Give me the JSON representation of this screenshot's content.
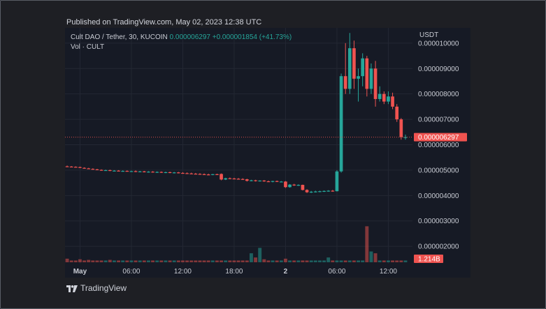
{
  "header": {
    "published_text": "Published on TradingView.com, May 02, 2023 12:38 UTC"
  },
  "legend": {
    "symbol": "Cult DAO / Tether, 30, KUCOIN",
    "last_price": "0.000006297",
    "change": "+0.000001854 (+41.73%)",
    "volume_label": "Vol · CULT"
  },
  "axis": {
    "currency": "USDT"
  },
  "badges": {
    "price": "0.000006297",
    "volume": "1.214B"
  },
  "footer": {
    "brand": "TradingView"
  },
  "colors": {
    "up": "#26a69a",
    "down": "#ef5350",
    "background": "#161a25",
    "grid": "#232733"
  },
  "chart_data": {
    "type": "candlestick",
    "title": "Cult DAO / Tether, 30, KUCOIN",
    "interval": "30",
    "currency": "USDT",
    "x_ticks": [
      "May",
      "06:00",
      "12:00",
      "18:00",
      "2",
      "06:00",
      "12:00"
    ],
    "x_tick_bar_index": [
      3,
      15,
      27,
      39,
      51,
      63,
      75
    ],
    "y_ticks": [
      2e-06,
      3e-06,
      4e-06,
      5e-06,
      6e-06,
      7e-06,
      8e-06,
      9e-06,
      1e-05
    ],
    "y_tick_labels": [
      "0.000002000",
      "0.000003000",
      "0.000004000",
      "0.000005000",
      "0.000006000",
      "0.000007000",
      "0.000008000",
      "0.000009000",
      "0.000010000"
    ],
    "ylim": [
      1.4e-06,
      1.06e-05
    ],
    "last_price": 6.297e-06,
    "last_volume": "1.214B",
    "grid": true,
    "candles": [
      [
        5.15e-06,
        5.18e-06,
        5.13e-06,
        5.14e-06
      ],
      [
        5.14e-06,
        5.16e-06,
        5.12e-06,
        5.13e-06
      ],
      [
        5.13e-06,
        5.15e-06,
        5.11e-06,
        5.12e-06
      ],
      [
        5.12e-06,
        5.14e-06,
        5.08e-06,
        5.09e-06
      ],
      [
        5.09e-06,
        5.11e-06,
        5.06e-06,
        5.07e-06
      ],
      [
        5.07e-06,
        5.09e-06,
        5.04e-06,
        5.05e-06
      ],
      [
        5.05e-06,
        5.07e-06,
        5.02e-06,
        5.03e-06
      ],
      [
        5.03e-06,
        5.05e-06,
        5e-06,
        5.01e-06
      ],
      [
        5.01e-06,
        5.03e-06,
        4.98e-06,
        4.99e-06
      ],
      [
        4.99e-06,
        5.02e-06,
        4.97e-06,
        5e-06
      ],
      [
        5e-06,
        5.02e-06,
        4.96e-06,
        4.97e-06
      ],
      [
        4.97e-06,
        5e-06,
        4.95e-06,
        4.98e-06
      ],
      [
        4.98e-06,
        5e-06,
        4.95e-06,
        4.96e-06
      ],
      [
        4.96e-06,
        4.99e-06,
        4.94e-06,
        4.97e-06
      ],
      [
        4.97e-06,
        4.99e-06,
        4.94e-06,
        4.95e-06
      ],
      [
        4.95e-06,
        4.98e-06,
        4.93e-06,
        4.96e-06
      ],
      [
        4.96e-06,
        4.99e-06,
        4.92e-06,
        4.94e-06
      ],
      [
        4.94e-06,
        4.97e-06,
        4.92e-06,
        4.95e-06
      ],
      [
        4.95e-06,
        4.97e-06,
        4.91e-06,
        4.93e-06
      ],
      [
        4.93e-06,
        4.96e-06,
        4.9e-06,
        4.94e-06
      ],
      [
        4.94e-06,
        4.96e-06,
        4.9e-06,
        4.92e-06
      ],
      [
        4.92e-06,
        4.95e-06,
        4.89e-06,
        4.93e-06
      ],
      [
        4.93e-06,
        4.95e-06,
        4.89e-06,
        4.91e-06
      ],
      [
        4.91e-06,
        4.94e-06,
        4.88e-06,
        4.92e-06
      ],
      [
        4.92e-06,
        4.94e-06,
        4.88e-06,
        4.9e-06
      ],
      [
        4.9e-06,
        4.93e-06,
        4.87e-06,
        4.91e-06
      ],
      [
        4.91e-06,
        4.93e-06,
        4.87e-06,
        4.89e-06
      ],
      [
        4.89e-06,
        4.92e-06,
        4.86e-06,
        4.88e-06
      ],
      [
        4.88e-06,
        4.91e-06,
        4.85e-06,
        4.87e-06
      ],
      [
        4.87e-06,
        4.9e-06,
        4.84e-06,
        4.86e-06
      ],
      [
        4.86e-06,
        4.89e-06,
        4.83e-06,
        4.85e-06
      ],
      [
        4.85e-06,
        4.88e-06,
        4.82e-06,
        4.84e-06
      ],
      [
        4.84e-06,
        4.87e-06,
        4.81e-06,
        4.83e-06
      ],
      [
        4.83e-06,
        4.86e-06,
        4.8e-06,
        4.82e-06
      ],
      [
        4.82e-06,
        4.85e-06,
        4.8e-06,
        4.84e-06
      ],
      [
        4.84e-06,
        4.86e-06,
        4.81e-06,
        4.83e-06
      ],
      [
        4.85e-06,
        4.87e-06,
        4.6e-06,
        4.63e-06
      ],
      [
        4.63e-06,
        4.7e-06,
        4.61e-06,
        4.68e-06
      ],
      [
        4.68e-06,
        4.71e-06,
        4.65e-06,
        4.67e-06
      ],
      [
        4.67e-06,
        4.7e-06,
        4.64e-06,
        4.66e-06
      ],
      [
        4.66e-06,
        4.69e-06,
        4.63e-06,
        4.65e-06
      ],
      [
        4.65e-06,
        4.68e-06,
        4.62e-06,
        4.64e-06
      ],
      [
        4.64e-06,
        4.66e-06,
        4.55e-06,
        4.58e-06
      ],
      [
        4.58e-06,
        4.62e-06,
        4.56e-06,
        4.6e-06
      ],
      [
        4.6e-06,
        4.62e-06,
        4.55e-06,
        4.57e-06
      ],
      [
        4.57e-06,
        4.6e-06,
        4.55e-06,
        4.59e-06
      ],
      [
        4.59e-06,
        4.61e-06,
        4.54e-06,
        4.56e-06
      ],
      [
        4.56e-06,
        4.59e-06,
        4.53e-06,
        4.55e-06
      ],
      [
        4.55e-06,
        4.58e-06,
        4.52e-06,
        4.57e-06
      ],
      [
        4.57e-06,
        4.59e-06,
        4.53e-06,
        4.54e-06
      ],
      [
        4.54e-06,
        4.57e-06,
        4.52e-06,
        4.55e-06
      ],
      [
        4.55e-06,
        4.57e-06,
        4.3e-06,
        4.33e-06
      ],
      [
        4.33e-06,
        4.45e-06,
        4.31e-06,
        4.43e-06
      ],
      [
        4.43e-06,
        4.46e-06,
        4.38e-06,
        4.4e-06
      ],
      [
        4.4e-06,
        4.44e-06,
        4.38e-06,
        4.42e-06
      ],
      [
        4.42e-06,
        4.43e-06,
        4.2e-06,
        4.22e-06
      ],
      [
        4.22e-06,
        4.25e-06,
        4.1e-06,
        4.13e-06
      ],
      [
        4.13e-06,
        4.18e-06,
        4.1e-06,
        4.15e-06
      ],
      [
        4.15e-06,
        4.19e-06,
        4.12e-06,
        4.16e-06
      ],
      [
        4.16e-06,
        4.19e-06,
        4.13e-06,
        4.17e-06
      ],
      [
        4.17e-06,
        4.2e-06,
        4.14e-06,
        4.18e-06
      ],
      [
        4.18e-06,
        4.21e-06,
        4.15e-06,
        4.19e-06
      ],
      [
        4.19e-06,
        4.22e-06,
        4.15e-06,
        4.17e-06
      ],
      [
        4.17e-06,
        5e-06,
        4.16e-06,
        4.95e-06
      ],
      [
        4.95e-06,
        8.8e-06,
        4.9e-06,
        8.7e-06
      ],
      [
        8.7e-06,
        1e-05,
        8e-06,
        8.2e-06
      ],
      [
        8.2e-06,
        1.04e-05,
        8e-06,
        9.8e-06
      ],
      [
        9.8e-06,
        1.01e-05,
        8.2e-06,
        8.6e-06
      ],
      [
        8.6e-06,
        9e-06,
        7.7e-06,
        8.7e-06
      ],
      [
        8.7e-06,
        9.6e-06,
        8.3e-06,
        9.4e-06
      ],
      [
        9.4e-06,
        9.5e-06,
        7.9e-06,
        8.2e-06
      ],
      [
        8.2e-06,
        9.2e-06,
        8e-06,
        9e-06
      ],
      [
        9e-06,
        9.3e-06,
        7.5e-06,
        7.8e-06
      ],
      [
        7.8e-06,
        8.3e-06,
        7.7e-06,
        8e-06
      ],
      [
        8e-06,
        8.1e-06,
        7.6e-06,
        7.7e-06
      ],
      [
        7.7e-06,
        8.1e-06,
        7.6e-06,
        7.9e-06
      ],
      [
        7.9e-06,
        8.05e-06,
        7.4e-06,
        7.5e-06
      ],
      [
        7.5e-06,
        7.6e-06,
        6.9e-06,
        7e-06
      ],
      [
        7e-06,
        7.05e-06,
        6.2e-06,
        6.3e-06
      ],
      [
        6.3e-06,
        6.4e-06,
        6.2e-06,
        6.3e-06
      ]
    ],
    "volumes": [
      0.06,
      0.03,
      0.03,
      0.05,
      0.03,
      0.04,
      0.03,
      0.03,
      0.03,
      0.03,
      0.04,
      0.03,
      0.03,
      0.03,
      0.03,
      0.03,
      0.03,
      0.03,
      0.03,
      0.03,
      0.03,
      0.03,
      0.03,
      0.03,
      0.03,
      0.03,
      0.03,
      0.03,
      0.03,
      0.03,
      0.03,
      0.03,
      0.03,
      0.03,
      0.03,
      0.03,
      0.03,
      0.03,
      0.03,
      0.03,
      0.03,
      0.03,
      0.03,
      0.15,
      0.08,
      0.24,
      0.05,
      0.03,
      0.03,
      0.03,
      0.03,
      0.06,
      0.03,
      0.03,
      0.03,
      0.03,
      0.03,
      0.03,
      0.03,
      0.03,
      0.03,
      0.08,
      0.03,
      0.03,
      0.03,
      0.03,
      0.03,
      0.03,
      0.03,
      0.03,
      0.6,
      0.18,
      0.15,
      0.03,
      0.03,
      0.03,
      0.03,
      0.03,
      0.03,
      0.03
    ]
  }
}
